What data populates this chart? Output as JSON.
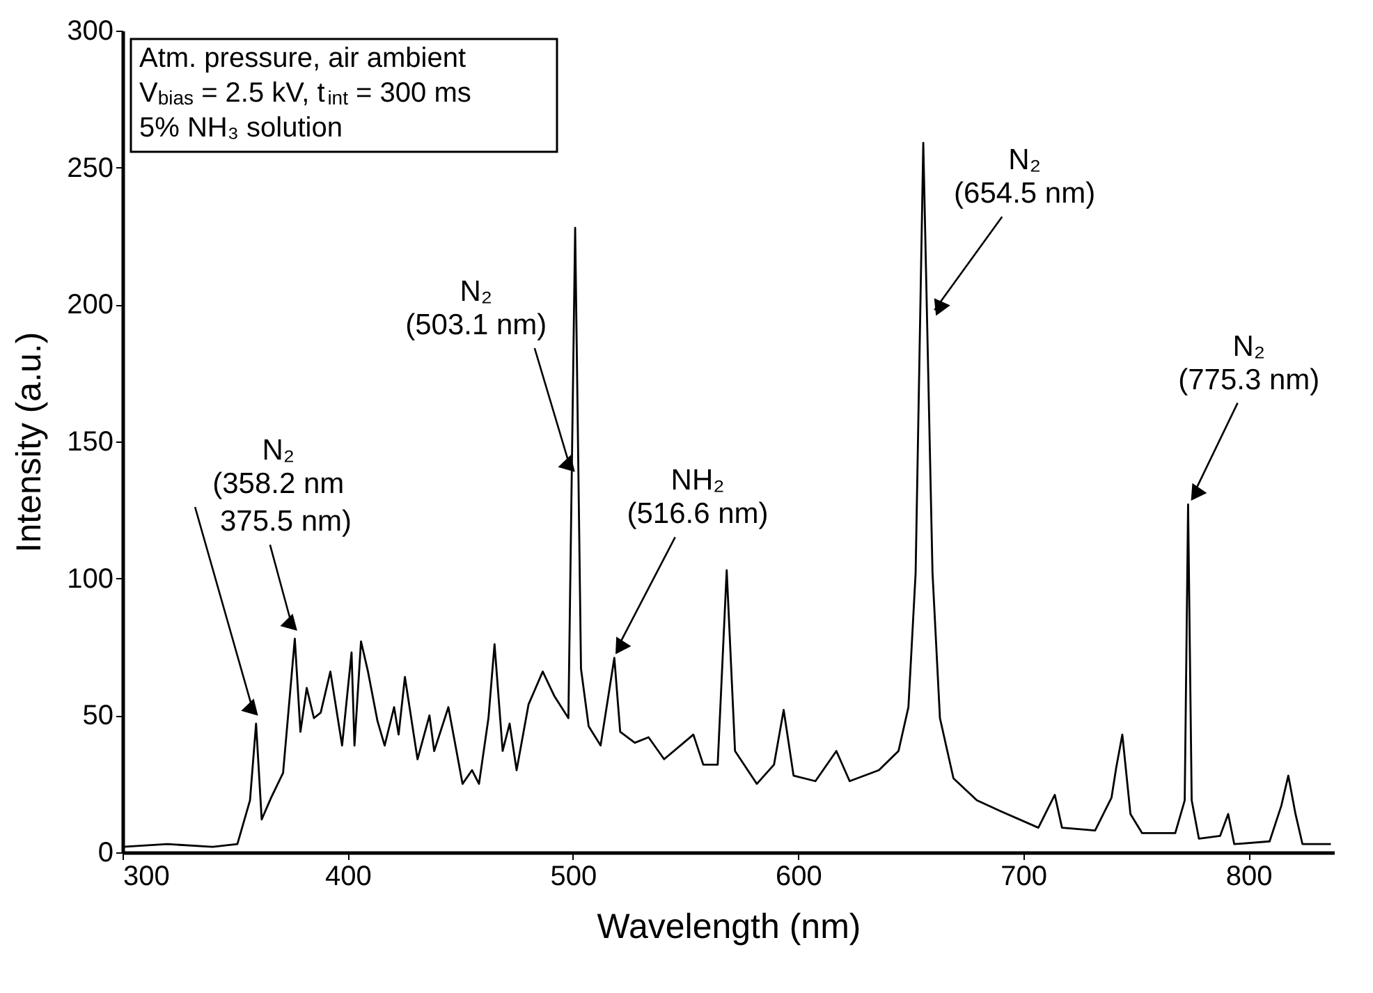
{
  "chart_data": {
    "type": "line",
    "xlabel": "Wavelength (nm)",
    "ylabel": "Intensity (a.u.)",
    "xlim": [
      300,
      838
    ],
    "ylim": [
      0,
      300
    ],
    "xticks": [
      300,
      400,
      500,
      600,
      700,
      800
    ],
    "yticks": [
      0,
      50,
      100,
      150,
      200,
      250,
      300
    ],
    "grid": false,
    "marker": "none",
    "line_style": "solid",
    "series": [
      {
        "color": "#000000",
        "x": [
          300,
          320,
          340,
          351,
          356.6,
          359.3,
          361.8,
          366,
          371.3,
          376.5,
          379,
          381.8,
          385,
          388,
          392.3,
          397.5,
          401.7,
          403,
          405.9,
          409,
          413.2,
          416.4,
          420.6,
          422.6,
          425.4,
          431,
          436.3,
          438.4,
          444.7,
          451,
          455.2,
          458.3,
          462.5,
          465.2,
          468.8,
          471.9,
          475,
          480.3,
          486.6,
          491.8,
          498,
          501,
          503.6,
          507,
          512.3,
          518.4,
          521,
          527.5,
          533.6,
          540.5,
          549.2,
          553.5,
          557.9,
          564.3,
          568.3,
          572,
          581.7,
          589.3,
          593.6,
          598,
          607.7,
          617,
          622.9,
          635.9,
          644.6,
          649,
          652.2,
          655.6,
          659.7,
          663,
          669,
          679.4,
          690,
          706.7,
          714,
          717.2,
          731.9,
          739.2,
          741.3,
          744,
          747.6,
          752.8,
          767.5,
          771.7,
          773.2,
          774.8,
          778,
          787.4,
          791,
          793.7,
          809.4,
          814.6,
          817.7,
          820.9,
          824,
          836.6
        ],
        "values": [
          2,
          3,
          2,
          3,
          19,
          47,
          12,
          20,
          29,
          78,
          44,
          60,
          49,
          51,
          66,
          39,
          73,
          39,
          77,
          66,
          48,
          39,
          53,
          43,
          64,
          34,
          50,
          37,
          53,
          25,
          30,
          25,
          49,
          76,
          37,
          47,
          30,
          54,
          66,
          57,
          49,
          228,
          67,
          46,
          39,
          71,
          44,
          40,
          42,
          34,
          40,
          43,
          32,
          32,
          103,
          37,
          25,
          32,
          52,
          28,
          26,
          37,
          26,
          30,
          37,
          53,
          102,
          259,
          102,
          49,
          27,
          19,
          15,
          9,
          21,
          9,
          8,
          20,
          31,
          43,
          14,
          7,
          7,
          19,
          127,
          19,
          5,
          6,
          14,
          3,
          4,
          17,
          28,
          14,
          3,
          3
        ]
      }
    ],
    "annotations": [
      "Atm. pressure, air ambient",
      "V$_{bias}$ = 2.5 kV, t$_{int}$ = 300 ms",
      "5% NH₃ solution",
      {
        "text": "N₂\n(358.2 nm",
        "x": 358.2,
        "y": 47
      },
      {
        "text": "375.5 nm)",
        "x": 375.5,
        "y": 78
      },
      {
        "text": "N₂\n(503.1 nm)",
        "x": 501,
        "y": 228
      },
      {
        "text": "NH₂\n(516.6 nm)",
        "x": 518.4,
        "y": 71
      },
      {
        "text": "N₂\n(654.5 nm)",
        "x": 655.6,
        "y": 259
      },
      {
        "text": "N₂\n(775.3 nm)",
        "x": 773.2,
        "y": 127
      }
    ]
  }
}
